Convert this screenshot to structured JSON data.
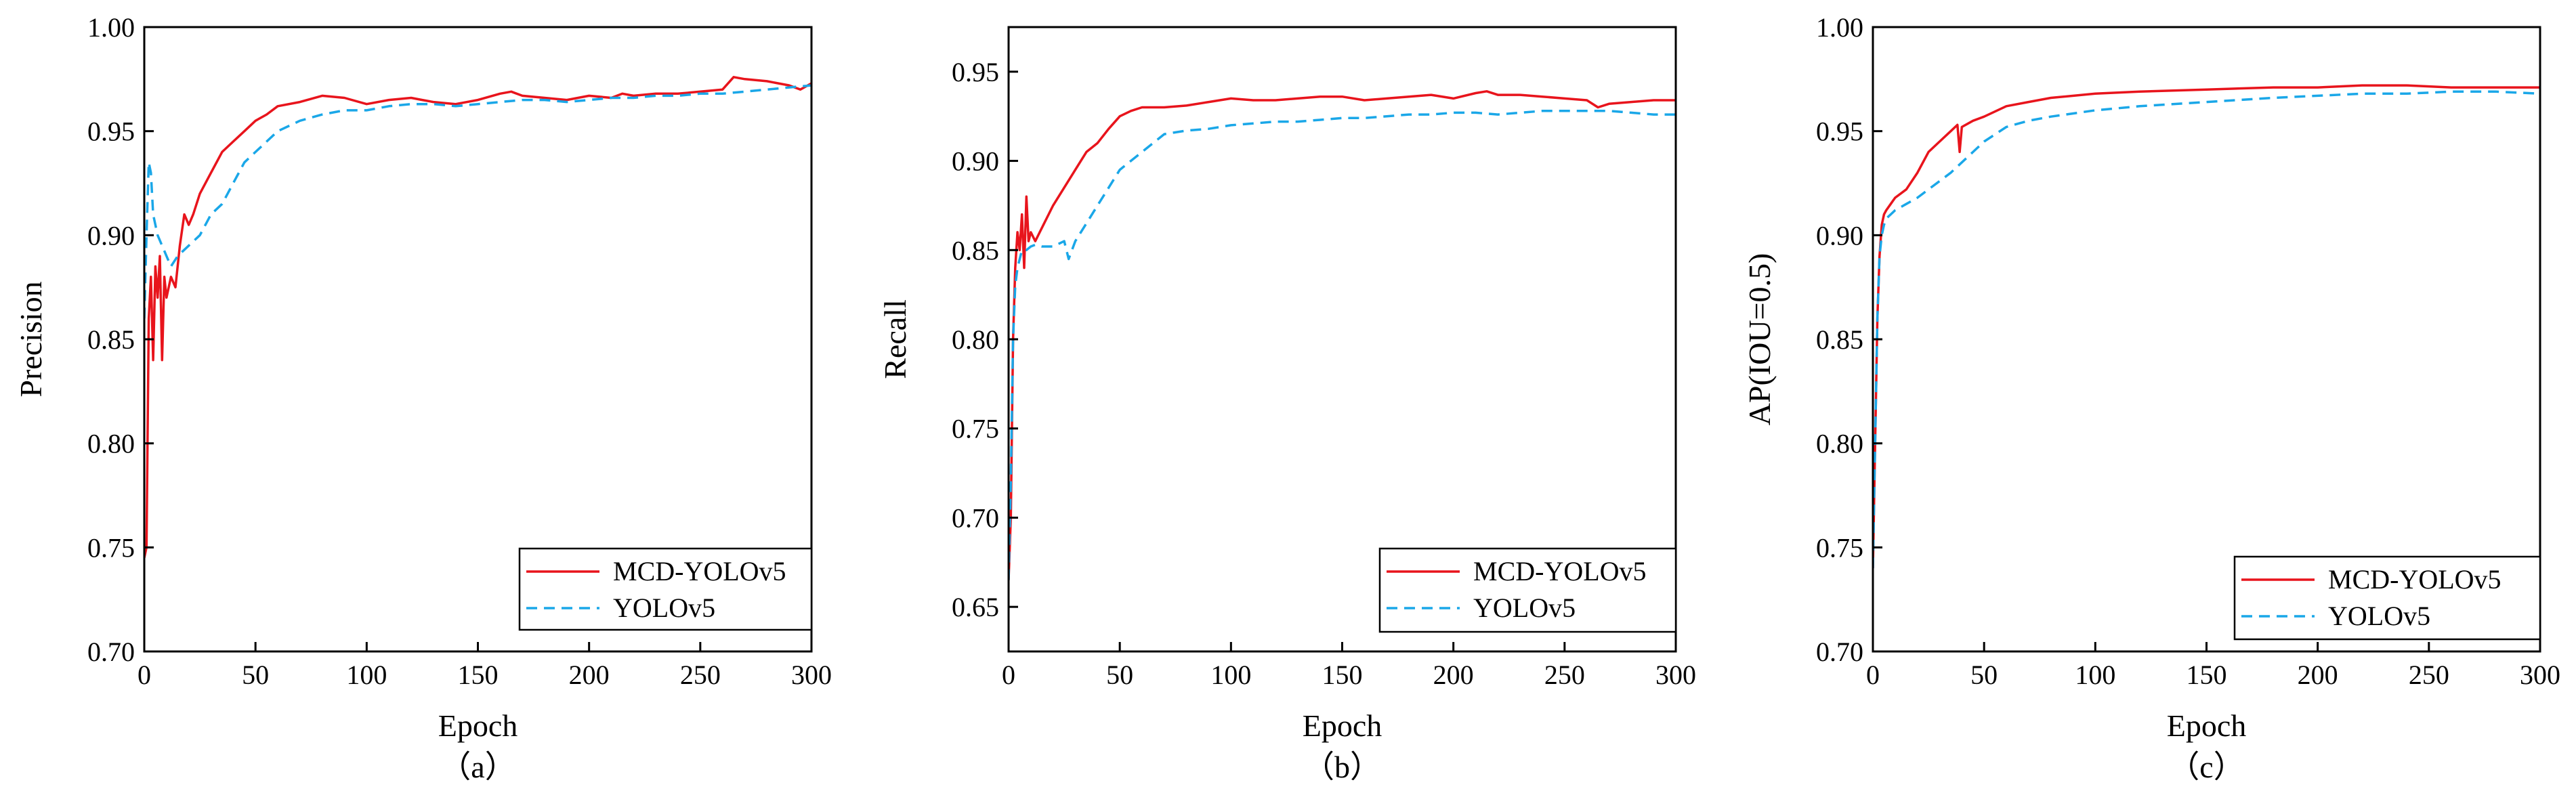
{
  "colors": {
    "mcd": "#e8141c",
    "yolo": "#1aa7e8",
    "axis": "#000000"
  },
  "chart_data": [
    {
      "type": "line",
      "caption": "（a）",
      "xlabel": "Epoch",
      "ylabel": "Precision",
      "xlim": [
        0,
        300
      ],
      "ylim": [
        0.7,
        1.0
      ],
      "xticks": [
        0,
        50,
        100,
        150,
        200,
        250,
        300
      ],
      "yticks": [
        0.7,
        0.75,
        0.8,
        0.85,
        0.9,
        0.95,
        1.0
      ],
      "xtick_labels": [
        "0",
        "50",
        "100",
        "150",
        "200",
        "250",
        "300"
      ],
      "ytick_labels": [
        "0.70",
        "0.75",
        "0.80",
        "0.85",
        "0.90",
        "0.95",
        "1.00"
      ],
      "legend": {
        "position": "bottom-right",
        "entries": [
          "MCD-YOLOv5",
          "YOLOv5"
        ]
      },
      "series": [
        {
          "name": "MCD-YOLOv5",
          "style": "solid",
          "x": [
            0,
            1,
            2,
            3,
            4,
            5,
            6,
            7,
            8,
            9,
            10,
            12,
            14,
            16,
            18,
            20,
            22,
            25,
            30,
            35,
            40,
            45,
            50,
            55,
            60,
            70,
            80,
            90,
            100,
            110,
            120,
            125,
            130,
            140,
            150,
            160,
            165,
            170,
            180,
            190,
            200,
            210,
            215,
            220,
            230,
            240,
            250,
            260,
            265,
            270,
            280,
            290,
            295,
            300
          ],
          "y": [
            0.745,
            0.75,
            0.86,
            0.88,
            0.84,
            0.885,
            0.87,
            0.89,
            0.84,
            0.88,
            0.87,
            0.88,
            0.875,
            0.895,
            0.91,
            0.905,
            0.91,
            0.92,
            0.93,
            0.94,
            0.945,
            0.95,
            0.955,
            0.958,
            0.962,
            0.964,
            0.967,
            0.966,
            0.963,
            0.965,
            0.966,
            0.965,
            0.964,
            0.963,
            0.965,
            0.968,
            0.969,
            0.967,
            0.966,
            0.965,
            0.967,
            0.966,
            0.968,
            0.967,
            0.968,
            0.968,
            0.969,
            0.97,
            0.976,
            0.975,
            0.974,
            0.972,
            0.97,
            0.973
          ]
        },
        {
          "name": "YOLOv5",
          "style": "dashed",
          "x": [
            0,
            1,
            2,
            3,
            4,
            5,
            6,
            8,
            10,
            12,
            15,
            20,
            25,
            30,
            35,
            40,
            45,
            50,
            60,
            70,
            80,
            90,
            100,
            110,
            120,
            130,
            140,
            150,
            160,
            170,
            180,
            190,
            200,
            210,
            220,
            230,
            240,
            250,
            260,
            270,
            280,
            290,
            300
          ],
          "y": [
            0.86,
            0.9,
            0.935,
            0.93,
            0.91,
            0.905,
            0.9,
            0.895,
            0.89,
            0.885,
            0.89,
            0.895,
            0.9,
            0.91,
            0.915,
            0.925,
            0.935,
            0.94,
            0.95,
            0.955,
            0.958,
            0.96,
            0.96,
            0.962,
            0.963,
            0.963,
            0.962,
            0.963,
            0.964,
            0.965,
            0.965,
            0.964,
            0.965,
            0.966,
            0.966,
            0.967,
            0.967,
            0.968,
            0.968,
            0.969,
            0.97,
            0.971,
            0.972
          ]
        }
      ]
    },
    {
      "type": "line",
      "caption": "（b）",
      "xlabel": "Epoch",
      "ylabel": "Recall",
      "xlim": [
        0,
        300
      ],
      "ylim": [
        0.625,
        0.975
      ],
      "xticks": [
        0,
        50,
        100,
        150,
        200,
        250,
        300
      ],
      "yticks": [
        0.65,
        0.7,
        0.75,
        0.8,
        0.85,
        0.9,
        0.95
      ],
      "xtick_labels": [
        "0",
        "50",
        "100",
        "150",
        "200",
        "250",
        "300"
      ],
      "ytick_labels": [
        "0.65",
        "0.70",
        "0.75",
        "0.80",
        "0.85",
        "0.90",
        "0.95"
      ],
      "legend": {
        "position": "bottom-right",
        "entries": [
          "MCD-YOLOv5",
          "YOLOv5"
        ]
      },
      "series": [
        {
          "name": "MCD-YOLOv5",
          "style": "solid",
          "x": [
            0,
            1,
            2,
            3,
            4,
            5,
            6,
            7,
            8,
            9,
            10,
            12,
            14,
            16,
            18,
            20,
            25,
            30,
            35,
            40,
            45,
            50,
            55,
            60,
            70,
            80,
            90,
            100,
            110,
            120,
            130,
            140,
            150,
            160,
            170,
            180,
            190,
            200,
            210,
            215,
            220,
            230,
            240,
            250,
            260,
            265,
            270,
            280,
            290,
            300
          ],
          "y": [
            0.665,
            0.7,
            0.8,
            0.84,
            0.86,
            0.85,
            0.87,
            0.84,
            0.88,
            0.855,
            0.86,
            0.855,
            0.86,
            0.865,
            0.87,
            0.875,
            0.885,
            0.895,
            0.905,
            0.91,
            0.918,
            0.925,
            0.928,
            0.93,
            0.93,
            0.931,
            0.933,
            0.935,
            0.934,
            0.934,
            0.935,
            0.936,
            0.936,
            0.934,
            0.935,
            0.936,
            0.937,
            0.935,
            0.938,
            0.939,
            0.937,
            0.937,
            0.936,
            0.935,
            0.934,
            0.93,
            0.932,
            0.933,
            0.934,
            0.934
          ]
        },
        {
          "name": "YOLOv5",
          "style": "dashed",
          "x": [
            0,
            1,
            2,
            3,
            4,
            5,
            6,
            8,
            10,
            12,
            15,
            20,
            25,
            27,
            30,
            35,
            40,
            45,
            50,
            60,
            70,
            80,
            90,
            100,
            110,
            120,
            130,
            140,
            150,
            160,
            170,
            180,
            190,
            200,
            210,
            220,
            230,
            240,
            250,
            260,
            270,
            280,
            290,
            300
          ],
          "y": [
            0.665,
            0.72,
            0.8,
            0.83,
            0.84,
            0.845,
            0.85,
            0.85,
            0.852,
            0.853,
            0.852,
            0.852,
            0.855,
            0.845,
            0.855,
            0.865,
            0.875,
            0.885,
            0.895,
            0.905,
            0.915,
            0.917,
            0.918,
            0.92,
            0.921,
            0.922,
            0.922,
            0.923,
            0.924,
            0.924,
            0.925,
            0.926,
            0.926,
            0.927,
            0.927,
            0.926,
            0.927,
            0.928,
            0.928,
            0.928,
            0.928,
            0.927,
            0.926,
            0.926
          ]
        }
      ]
    },
    {
      "type": "line",
      "caption": "（c）",
      "xlabel": "Epoch",
      "ylabel": "AP(IOU=0.5)",
      "xlim": [
        0,
        300
      ],
      "ylim": [
        0.7,
        1.0
      ],
      "xticks": [
        0,
        50,
        100,
        150,
        200,
        250,
        300
      ],
      "yticks": [
        0.7,
        0.75,
        0.8,
        0.85,
        0.9,
        0.95,
        1.0
      ],
      "xtick_labels": [
        "0",
        "50",
        "100",
        "150",
        "200",
        "250",
        "300"
      ],
      "ytick_labels": [
        "0.70",
        "0.75",
        "0.80",
        "0.85",
        "0.90",
        "0.95",
        "1.00"
      ],
      "legend": {
        "position": "bottom-right",
        "entries": [
          "MCD-YOLOv5",
          "YOLOv5"
        ]
      },
      "series": [
        {
          "name": "MCD-YOLOv5",
          "style": "solid",
          "x": [
            0,
            1,
            2,
            3,
            4,
            5,
            6,
            8,
            10,
            15,
            20,
            25,
            30,
            35,
            38,
            39,
            40,
            45,
            50,
            60,
            70,
            80,
            100,
            120,
            150,
            180,
            200,
            220,
            230,
            240,
            260,
            280,
            300
          ],
          "y": [
            0.74,
            0.8,
            0.86,
            0.89,
            0.905,
            0.91,
            0.912,
            0.915,
            0.918,
            0.922,
            0.93,
            0.94,
            0.945,
            0.95,
            0.953,
            0.94,
            0.952,
            0.955,
            0.957,
            0.962,
            0.964,
            0.966,
            0.968,
            0.969,
            0.97,
            0.971,
            0.971,
            0.972,
            0.972,
            0.972,
            0.971,
            0.971,
            0.971
          ]
        },
        {
          "name": "YOLOv5",
          "style": "dashed",
          "x": [
            0,
            1,
            2,
            3,
            4,
            5,
            6,
            8,
            10,
            15,
            20,
            25,
            30,
            35,
            40,
            45,
            50,
            60,
            70,
            80,
            100,
            120,
            150,
            180,
            200,
            220,
            240,
            260,
            280,
            300
          ],
          "y": [
            0.74,
            0.8,
            0.86,
            0.89,
            0.9,
            0.905,
            0.908,
            0.91,
            0.912,
            0.915,
            0.918,
            0.922,
            0.926,
            0.93,
            0.935,
            0.94,
            0.945,
            0.952,
            0.955,
            0.957,
            0.96,
            0.962,
            0.964,
            0.966,
            0.967,
            0.968,
            0.968,
            0.969,
            0.969,
            0.968
          ]
        }
      ]
    }
  ]
}
